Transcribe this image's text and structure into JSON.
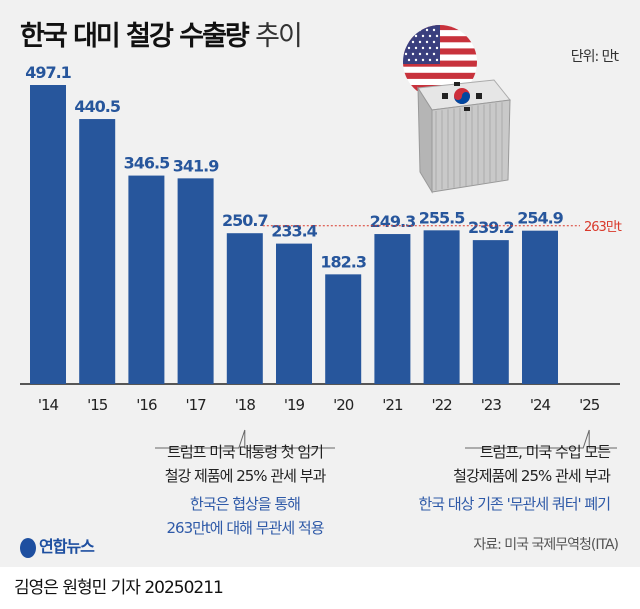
{
  "header": {
    "title_bold": "한국 대미 철강 수출량",
    "title_light": "추이",
    "unit": "단위: 만t"
  },
  "chart_data": {
    "type": "bar",
    "title": "한국 대미 철강 수출량 추이",
    "unit": "만t",
    "categories": [
      "'14",
      "'15",
      "'16",
      "'17",
      "'18",
      "'19",
      "'20",
      "'21",
      "'22",
      "'23",
      "'24",
      "'25"
    ],
    "values": [
      497.1,
      440.5,
      346.5,
      341.9,
      250.7,
      233.4,
      182.3,
      249.3,
      255.5,
      239.2,
      254.9,
      null
    ],
    "labels": [
      "497.1",
      "440.5",
      "346.5",
      "341.9",
      "250.7",
      "233.4",
      "182.3",
      "249.3",
      "255.5",
      "239.2",
      "254.9",
      ""
    ],
    "reference_line": {
      "value": 263,
      "label": "263만t",
      "color": "#d9392b"
    },
    "bar_color": "#27569c",
    "ylim": [
      0,
      500
    ],
    "grid": false
  },
  "annotations": [
    {
      "year": "'18",
      "lines": [
        "트럼프 미국 대통령 첫 임기",
        "철강 제품에 25% 관세 부과"
      ],
      "blue_lines": [
        "한국은 협상을 통해",
        "263만t에 대해 무관세 적용"
      ]
    },
    {
      "year": "'25",
      "lines": [
        "트럼프, 미국 수입 모든",
        "철강제품에 25% 관세 부과"
      ],
      "blue_lines": [
        "한국 대상 기존 '무관세 쿼터' 폐기"
      ]
    }
  ],
  "footer": {
    "logo": "연합뉴스",
    "source": "자료: 미국 국제무역청(ITA)",
    "credit": "김영은 원형민 기자  20250211"
  },
  "illustration": {
    "icons": [
      "us-flag-icon",
      "korea-flag-icon",
      "shipping-container-icon"
    ]
  }
}
